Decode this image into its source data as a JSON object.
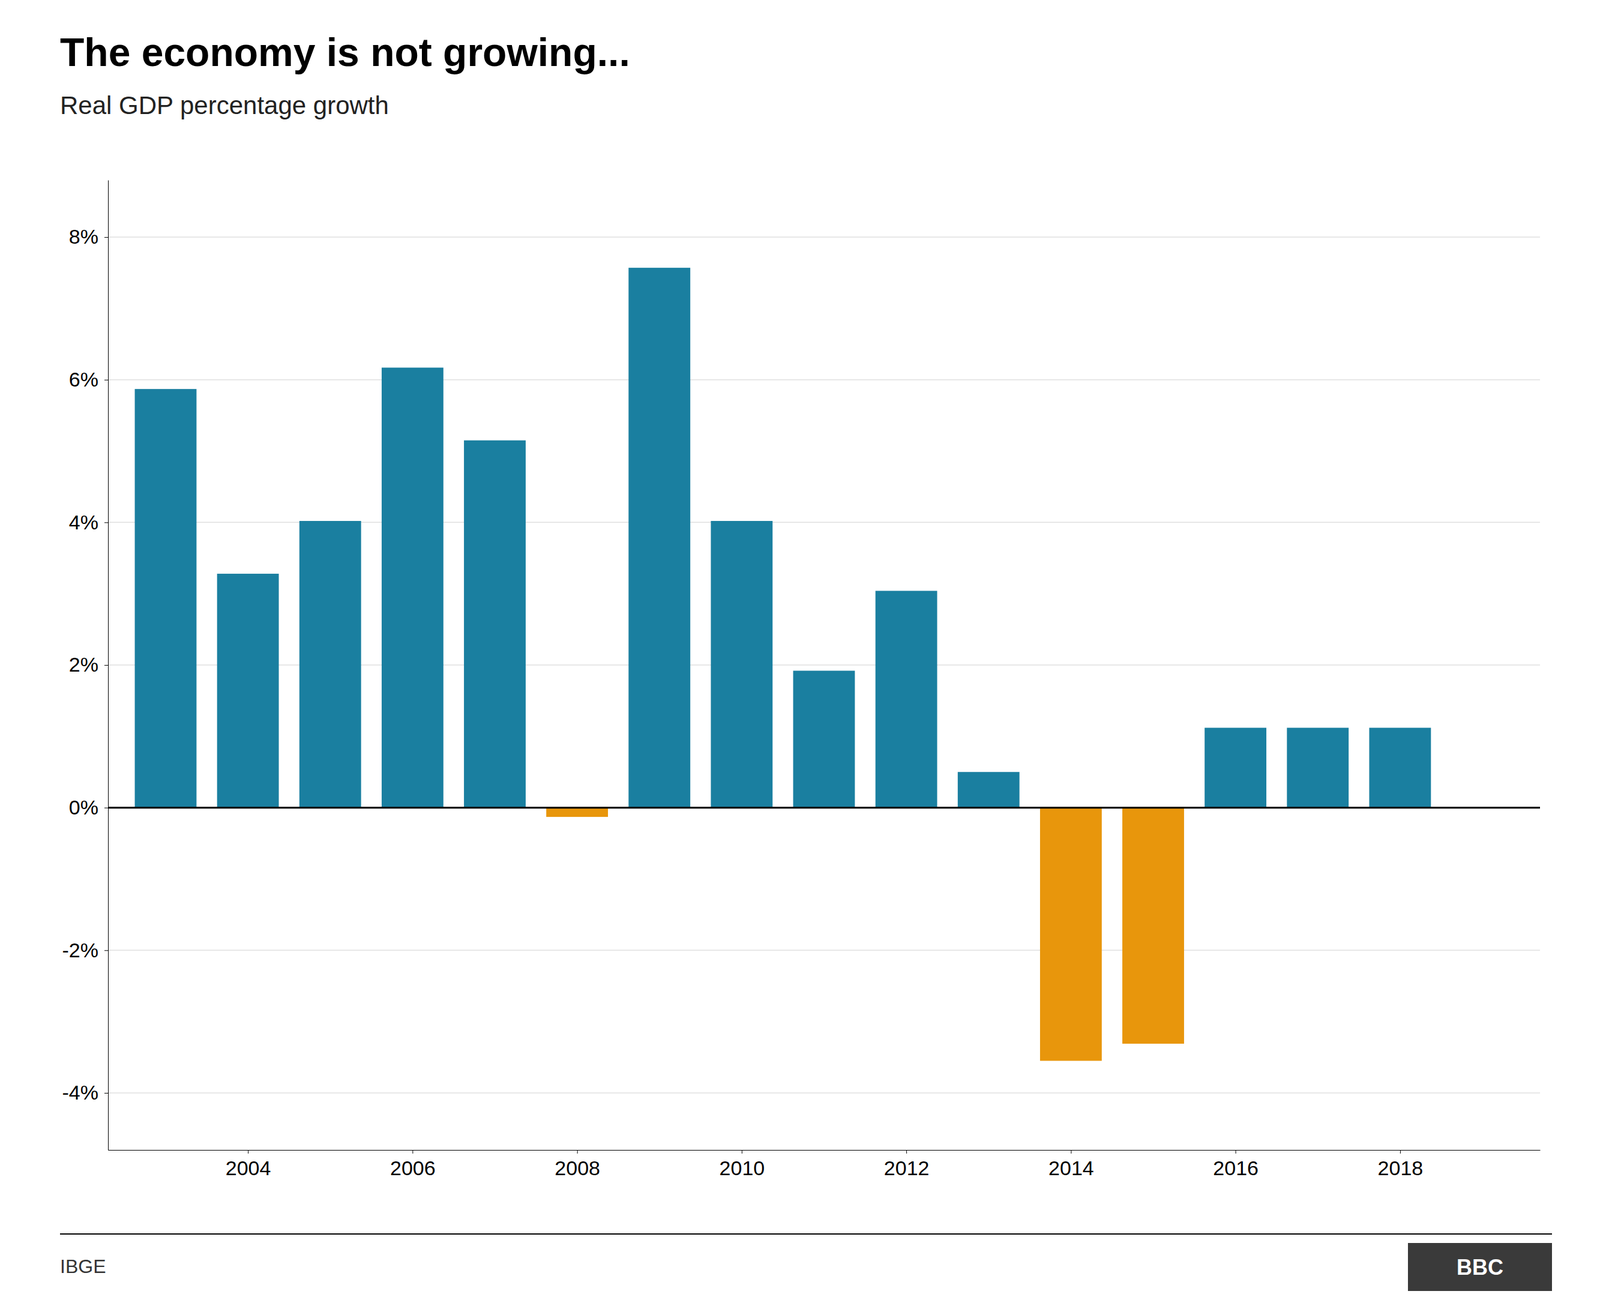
{
  "chart_data": {
    "type": "bar",
    "title": "The economy is not growing...",
    "subtitle": "Real GDP percentage growth",
    "source": "IBGE",
    "annotations": [
      "BBC"
    ],
    "x": [
      2003,
      2004,
      2005,
      2006,
      2007,
      2008,
      2009,
      2010,
      2011,
      2012,
      2013,
      2014,
      2015,
      2016,
      2017,
      2018
    ],
    "values": [
      5.87,
      3.28,
      4.02,
      6.17,
      5.15,
      -0.13,
      7.57,
      4.02,
      1.92,
      3.04,
      0.5,
      -3.55,
      -3.31,
      1.12,
      1.12,
      1.12
    ],
    "colors": [
      "#1a7fa0",
      "#1a7fa0",
      "#1a7fa0",
      "#1a7fa0",
      "#1a7fa0",
      "#e8960c",
      "#1a7fa0",
      "#1a7fa0",
      "#1a7fa0",
      "#1a7fa0",
      "#1a7fa0",
      "#e8960c",
      "#e8960c",
      "#1a7fa0",
      "#1a7fa0",
      "#1a7fa0"
    ],
    "xlim": [
      2002.3,
      2019.7
    ],
    "xticks": [
      2004,
      2006,
      2008,
      2010,
      2012,
      2014,
      2016,
      2018
    ],
    "ylim": [
      -4.8,
      8.8
    ],
    "yticks": [
      {
        "value": -4,
        "label": "-4%"
      },
      {
        "value": -2,
        "label": "-2%"
      },
      {
        "value": 0,
        "label": "0%"
      },
      {
        "value": 2,
        "label": "2%"
      },
      {
        "value": 4,
        "label": "4%"
      },
      {
        "value": 6,
        "label": "6%"
      },
      {
        "value": 8,
        "label": "8%"
      }
    ],
    "grid": true
  }
}
